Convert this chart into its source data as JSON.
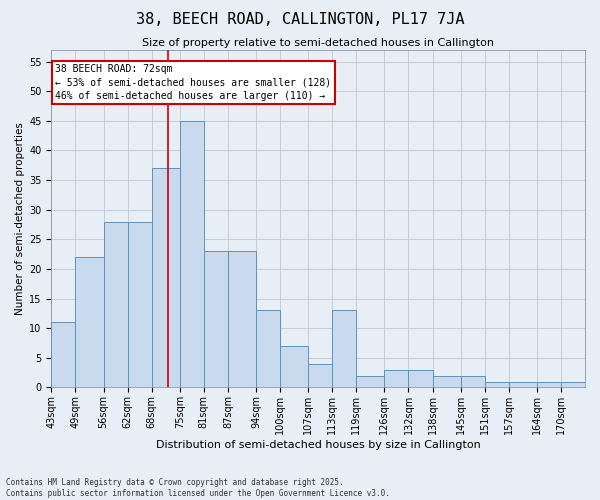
{
  "title": "38, BEECH ROAD, CALLINGTON, PL17 7JA",
  "subtitle": "Size of property relative to semi-detached houses in Callington",
  "xlabel": "Distribution of semi-detached houses by size in Callington",
  "ylabel": "Number of semi-detached properties",
  "bins": [
    43,
    49,
    56,
    62,
    68,
    75,
    81,
    87,
    94,
    100,
    107,
    113,
    119,
    126,
    132,
    138,
    145,
    151,
    157,
    164,
    170
  ],
  "bin_width": 6,
  "values": [
    11,
    22,
    28,
    28,
    37,
    45,
    23,
    23,
    13,
    7,
    4,
    13,
    2,
    3,
    3,
    2,
    2,
    1,
    1,
    1,
    1
  ],
  "bar_color": "#c9d9ee",
  "bar_edge_color": "#6090bb",
  "grid_color": "#bbc8da",
  "background_color": "#e8eef5",
  "property_size": 72,
  "annotation_text": "38 BEECH ROAD: 72sqm\n← 53% of semi-detached houses are smaller (128)\n46% of semi-detached houses are larger (110) →",
  "annotation_box_color": "#ffffff",
  "annotation_box_edge_color": "#cc0000",
  "vline_color": "#cc0000",
  "footer": "Contains HM Land Registry data © Crown copyright and database right 2025.\nContains public sector information licensed under the Open Government Licence v3.0.",
  "ylim": [
    0,
    57
  ],
  "yticks": [
    0,
    5,
    10,
    15,
    20,
    25,
    30,
    35,
    40,
    45,
    50,
    55
  ],
  "title_fontsize": 11,
  "subtitle_fontsize": 8,
  "ylabel_fontsize": 7.5,
  "xlabel_fontsize": 8,
  "tick_fontsize": 7,
  "annot_fontsize": 7
}
